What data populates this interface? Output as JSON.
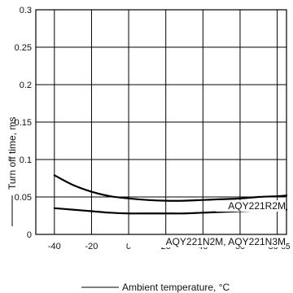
{
  "chart_data": {
    "type": "line",
    "title": "",
    "xlabel": "Ambient temperature, °C",
    "ylabel": "Turn off time, ms",
    "xlim": [
      -50,
      85
    ],
    "ylim": [
      0,
      0.3
    ],
    "x_ticks": [
      "-40",
      "-20",
      "0",
      "20",
      "40",
      "60",
      "80",
      "85"
    ],
    "y_ticks": [
      "0",
      "0.05",
      "0.1",
      "0.15",
      "0.2",
      "0.25",
      "0.3"
    ],
    "grid": true,
    "series": [
      {
        "name": "AQY221R2M",
        "x": [
          -40,
          -30,
          -20,
          -10,
          0,
          10,
          20,
          30,
          40,
          50,
          60,
          70,
          80,
          85
        ],
        "y": [
          0.079,
          0.066,
          0.057,
          0.051,
          0.048,
          0.046,
          0.045,
          0.045,
          0.046,
          0.047,
          0.048,
          0.05,
          0.051,
          0.052
        ]
      },
      {
        "name": "AQY221N2M, AQY221N3M",
        "x": [
          -40,
          -30,
          -20,
          -10,
          0,
          10,
          20,
          30,
          40,
          50,
          60,
          70,
          80,
          85
        ],
        "y": [
          0.035,
          0.033,
          0.031,
          0.029,
          0.028,
          0.028,
          0.028,
          0.028,
          0.029,
          0.03,
          0.031,
          0.032,
          0.033,
          0.033
        ]
      }
    ]
  }
}
